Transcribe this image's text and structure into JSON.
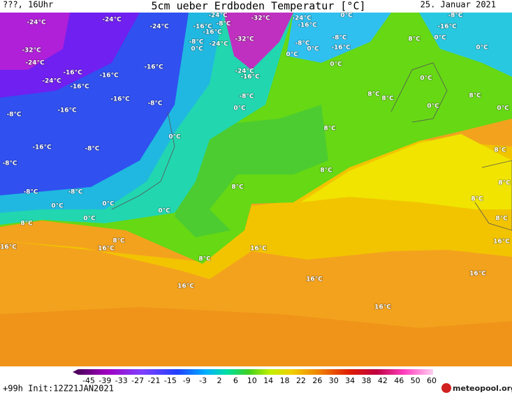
{
  "header": {
    "left": "???, 16Uhr",
    "title": "5cm ueber Erdboden Temperatur [°C]",
    "date": "25. Januar 2021"
  },
  "map_labels": [
    "-24°C",
    "-24°C",
    "-24°C",
    "-16°C",
    "-24°C",
    "-8°C",
    "-16°C",
    "-32°C",
    "-32°C",
    "-24°C",
    "-16°C",
    "0°C",
    "-8°C",
    "-16°C",
    "0°C",
    "0°C",
    "-8°C",
    "0°C",
    "-24°C",
    "-8°C",
    "-8°C",
    "0°C",
    "0°C",
    "-16°C",
    "0°C",
    "-32°C",
    "-24°C",
    "-24°C",
    "-16°C",
    "-16°C",
    "-16°C",
    "-16°C",
    "-24°C",
    "-16°C",
    "-8°C",
    "0°C",
    "-16°C",
    "-8°C",
    "-16°C",
    "-8°C",
    "0°C",
    "8°C",
    "8°C",
    "8°C",
    "8°C",
    "0°C",
    "0°C",
    "8°C",
    "-16°C",
    "-8°C",
    "0°C",
    "-8°C",
    "8°C",
    "8°C",
    "8°C",
    "-8°C",
    "-8°C",
    "0°C",
    "0°C",
    "0°C",
    "0°C",
    "8°C",
    "8°C",
    "8°C",
    "8°C",
    "16°C",
    "16°C",
    "8°C",
    "16°C",
    "16°C",
    "8°C",
    "16°C",
    "16°C",
    "16°C",
    "16°C"
  ],
  "colorbar": {
    "ticks": [
      -45,
      -39,
      -33,
      -27,
      -21,
      -15,
      -9,
      -3,
      2,
      6,
      10,
      14,
      18,
      22,
      26,
      30,
      34,
      38,
      42,
      46,
      50,
      60
    ]
  },
  "footer": {
    "run": "+99h Init:12Z21JAN2021",
    "logo": "meteopool.org"
  }
}
